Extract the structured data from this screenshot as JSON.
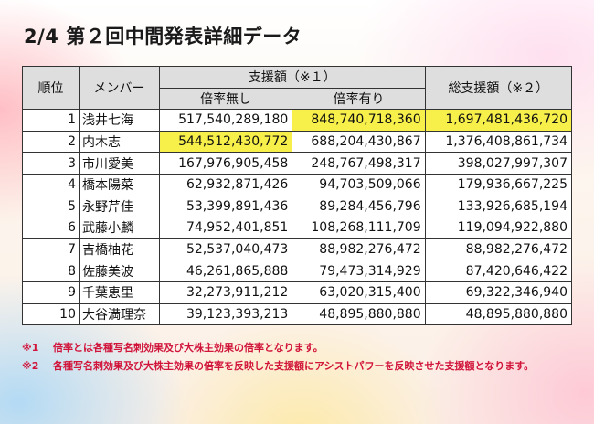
{
  "title": "2/4 第２回中間発表詳細データ",
  "headers": {
    "rank": "順位",
    "member": "メンバー",
    "support": "支援額（※１）",
    "no_mult": "倍率無し",
    "with_mult": "倍率有り",
    "total": "総支援額（※２）"
  },
  "rows": [
    {
      "rank": "1",
      "name": "浅井七海",
      "no_mult": "517,540,289,180",
      "with_mult": "848,740,718,360",
      "total": "1,697,481,436,720",
      "hl": [
        "with_mult",
        "total"
      ]
    },
    {
      "rank": "2",
      "name": "内木志",
      "no_mult": "544,512,430,772",
      "with_mult": "688,204,430,867",
      "total": "1,376,408,861,734",
      "hl": [
        "no_mult"
      ]
    },
    {
      "rank": "3",
      "name": "市川愛美",
      "no_mult": "167,976,905,458",
      "with_mult": "248,767,498,317",
      "total": "398,027,997,307",
      "hl": []
    },
    {
      "rank": "4",
      "name": "橋本陽菜",
      "no_mult": "62,932,871,426",
      "with_mult": "94,703,509,066",
      "total": "179,936,667,225",
      "hl": []
    },
    {
      "rank": "5",
      "name": "永野芹佳",
      "no_mult": "53,399,891,436",
      "with_mult": "89,284,456,796",
      "total": "133,926,685,194",
      "hl": []
    },
    {
      "rank": "6",
      "name": "武藤小麟",
      "no_mult": "74,952,401,851",
      "with_mult": "108,268,111,709",
      "total": "119,094,922,880",
      "hl": []
    },
    {
      "rank": "7",
      "name": "吉橋柚花",
      "no_mult": "52,537,040,473",
      "with_mult": "88,982,276,472",
      "total": "88,982,276,472",
      "hl": []
    },
    {
      "rank": "8",
      "name": "佐藤美波",
      "no_mult": "46,261,865,888",
      "with_mult": "79,473,314,929",
      "total": "87,420,646,422",
      "hl": []
    },
    {
      "rank": "9",
      "name": "千葉恵里",
      "no_mult": "32,273,911,212",
      "with_mult": "63,020,315,400",
      "total": "69,322,346,940",
      "hl": []
    },
    {
      "rank": "10",
      "name": "大谷満理奈",
      "no_mult": "39,123,393,213",
      "with_mult": "48,895,880,880",
      "total": "48,895,880,880",
      "hl": []
    }
  ],
  "notes": [
    {
      "mark": "※1",
      "text": "倍率とは各種写名刺効果及び大株主効果の倍率となります。"
    },
    {
      "mark": "※2",
      "text": "各種写名刺効果及び大株主効果の倍率を反映した支援額にアシストパワーを反映させた支援額となります。"
    }
  ],
  "colors": {
    "highlight": "#f7ef4a",
    "header_bg": "#dedede",
    "note_red": "#d1143a"
  }
}
